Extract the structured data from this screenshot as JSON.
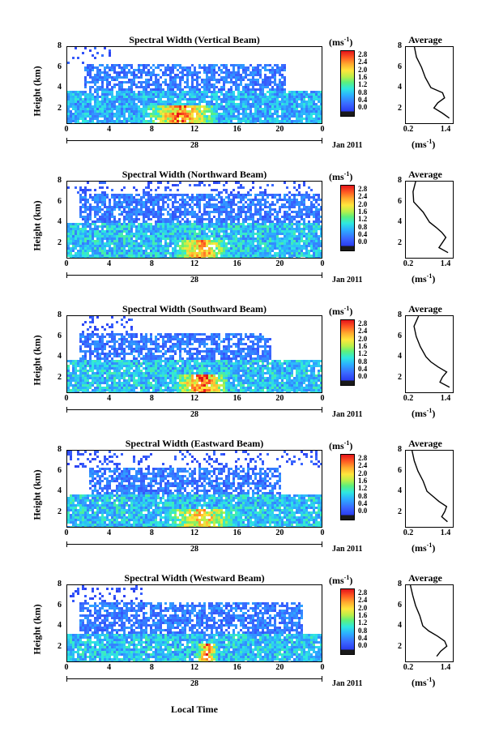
{
  "shared": {
    "ylabel": "Height (km)",
    "y_ticks": [
      "8",
      "6",
      "4",
      "2"
    ],
    "x_ticks": [
      "0",
      "4",
      "8",
      "12",
      "16",
      "20",
      "0"
    ],
    "date_day": "28",
    "date_month": "Jan 2011",
    "colorbar_unit": "(ms",
    "colorbar_unit_exp": "-1",
    "colorbar_unit_close": ")",
    "colorbar_ticks": [
      "2.8",
      "2.4",
      "2.0",
      "1.6",
      "1.2",
      "0.8",
      "0.4",
      "0.0"
    ],
    "avg_title": "Average",
    "avg_x_ticks": [
      "0.2",
      "1.4"
    ],
    "avg_y_ticks": [
      "8",
      "6",
      "4",
      "2"
    ],
    "avg_unit": "(ms",
    "avg_unit_exp": "-1",
    "avg_unit_close": ")",
    "xlabel": "Local Time"
  },
  "panels": [
    {
      "title": "Spectral Width (Vertical Beam)"
    },
    {
      "title": "Spectral Width (Northward Beam)"
    },
    {
      "title": "Spectral Width (Southward Beam)"
    },
    {
      "title": "Spectral Width (Eastward Beam)"
    },
    {
      "title": "Spectral Width (Westward Beam)"
    }
  ],
  "chart_data": [
    {
      "type": "heatmap",
      "title": "Spectral Width (Vertical Beam)",
      "xlabel": "Local Time",
      "ylabel": "Height (km)",
      "xlim": [
        0,
        24
      ],
      "ylim": [
        0.5,
        8
      ],
      "colorbar": {
        "label": "(ms-1)",
        "range": [
          0.0,
          2.8
        ]
      },
      "layers": [
        {
          "height_range": [
            0.5,
            4
          ],
          "time_range": [
            0,
            24
          ],
          "typical_width": 0.9
        },
        {
          "height_range": [
            4,
            6.5
          ],
          "time_range": [
            1.5,
            20.5
          ],
          "typical_width": 0.6
        },
        {
          "height_range": [
            6.5,
            8
          ],
          "time_range": [
            0,
            4
          ],
          "typical_width": 0.4
        }
      ],
      "enhanced_region": {
        "time_range": [
          7,
          14
        ],
        "height_range": [
          0.5,
          2.5
        ],
        "typical_width": 2.4
      },
      "average_profile": {
        "height_km": [
          1,
          1.5,
          2,
          2.5,
          3,
          3.5,
          4,
          5,
          6,
          7,
          8
        ],
        "width_ms": [
          1.4,
          1.2,
          0.95,
          1.05,
          1.25,
          1.2,
          0.85,
          0.7,
          0.55,
          0.4,
          0.35
        ]
      }
    },
    {
      "type": "heatmap",
      "title": "Spectral Width (Northward Beam)",
      "xlabel": "Local Time",
      "ylabel": "Height (km)",
      "xlim": [
        0,
        24
      ],
      "ylim": [
        0.5,
        8
      ],
      "colorbar": {
        "label": "(ms-1)",
        "range": [
          0.0,
          2.8
        ]
      },
      "layers": [
        {
          "height_range": [
            0.5,
            4.2
          ],
          "time_range": [
            0,
            24
          ],
          "typical_width": 1.0
        },
        {
          "height_range": [
            4.2,
            7
          ],
          "time_range": [
            1,
            24
          ],
          "typical_width": 0.6
        },
        {
          "height_range": [
            7,
            8
          ],
          "time_range": [
            0,
            24
          ],
          "typical_width": 0.4
        }
      ],
      "enhanced_region": {
        "time_range": [
          10,
          15
        ],
        "height_range": [
          0.5,
          2.5
        ],
        "typical_width": 2.4
      },
      "average_profile": {
        "height_km": [
          1,
          1.5,
          2,
          2.5,
          3,
          3.5,
          4,
          5,
          6,
          7,
          8
        ],
        "width_ms": [
          1.35,
          1.1,
          1.2,
          1.3,
          1.15,
          1.0,
          0.8,
          0.6,
          0.35,
          0.3,
          0.4
        ]
      }
    },
    {
      "type": "heatmap",
      "title": "Spectral Width (Southward Beam)",
      "xlabel": "Local Time",
      "ylabel": "Height (km)",
      "xlim": [
        0,
        24
      ],
      "ylim": [
        0.5,
        8
      ],
      "colorbar": {
        "label": "(ms-1)",
        "range": [
          0.0,
          2.8
        ]
      },
      "layers": [
        {
          "height_range": [
            0.5,
            3.8
          ],
          "time_range": [
            0,
            24
          ],
          "typical_width": 1.0
        },
        {
          "height_range": [
            3.8,
            6.5
          ],
          "time_range": [
            1,
            19
          ],
          "typical_width": 0.6
        },
        {
          "height_range": [
            6.5,
            8
          ],
          "time_range": [
            1,
            6
          ],
          "typical_width": 0.4
        }
      ],
      "enhanced_region": {
        "time_range": [
          10,
          15
        ],
        "height_range": [
          0.5,
          2.5
        ],
        "typical_width": 2.6
      },
      "average_profile": {
        "height_km": [
          1,
          1.5,
          2,
          2.5,
          3,
          3.5,
          4,
          5,
          6,
          7,
          8
        ],
        "width_ms": [
          1.4,
          1.1,
          1.2,
          1.3,
          1.05,
          0.85,
          0.7,
          0.55,
          0.4,
          0.35,
          0.5
        ]
      }
    },
    {
      "type": "heatmap",
      "title": "Spectral Width (Eastward Beam)",
      "xlabel": "Local Time",
      "ylabel": "Height (km)",
      "xlim": [
        0,
        24
      ],
      "ylim": [
        0.5,
        8
      ],
      "colorbar": {
        "label": "(ms-1)",
        "range": [
          0.0,
          2.8
        ]
      },
      "layers": [
        {
          "height_range": [
            0.5,
            3.8
          ],
          "time_range": [
            0,
            24
          ],
          "typical_width": 1.0
        },
        {
          "height_range": [
            3.8,
            6.5
          ],
          "time_range": [
            2,
            20
          ],
          "typical_width": 0.6
        },
        {
          "height_range": [
            6.5,
            8
          ],
          "time_range": [
            0,
            24
          ],
          "typical_width": 0.4
        }
      ],
      "enhanced_region": {
        "time_range": [
          9,
          16
        ],
        "height_range": [
          0.5,
          2.5
        ],
        "typical_width": 2.2
      },
      "average_profile": {
        "height_km": [
          1,
          1.5,
          2,
          2.5,
          3,
          3.5,
          4,
          5,
          6,
          7,
          8
        ],
        "width_ms": [
          1.35,
          1.15,
          1.25,
          1.3,
          1.1,
          0.9,
          0.75,
          0.6,
          0.45,
          0.35,
          0.3
        ]
      }
    },
    {
      "type": "heatmap",
      "title": "Spectral Width (Westward Beam)",
      "xlabel": "Local Time",
      "ylabel": "Height (km)",
      "xlim": [
        0,
        24
      ],
      "ylim": [
        0.5,
        8
      ],
      "colorbar": {
        "label": "(ms-1)",
        "range": [
          0.0,
          2.8
        ]
      },
      "layers": [
        {
          "height_range": [
            0.5,
            3.5
          ],
          "time_range": [
            0,
            24
          ],
          "typical_width": 1.0
        },
        {
          "height_range": [
            3.5,
            6.5
          ],
          "time_range": [
            1,
            22
          ],
          "typical_width": 0.6
        },
        {
          "height_range": [
            6.5,
            8
          ],
          "time_range": [
            0,
            7
          ],
          "typical_width": 0.35
        }
      ],
      "enhanced_region": {
        "time_range": [
          12,
          14
        ],
        "height_range": [
          0.5,
          2.5
        ],
        "typical_width": 2.5
      },
      "average_profile": {
        "height_km": [
          1,
          1.5,
          2,
          2.5,
          3,
          3.5,
          4,
          5,
          6,
          7,
          8
        ],
        "width_ms": [
          1.0,
          1.15,
          1.3,
          1.25,
          1.05,
          0.8,
          0.6,
          0.5,
          0.4,
          0.3,
          0.25
        ]
      }
    }
  ]
}
